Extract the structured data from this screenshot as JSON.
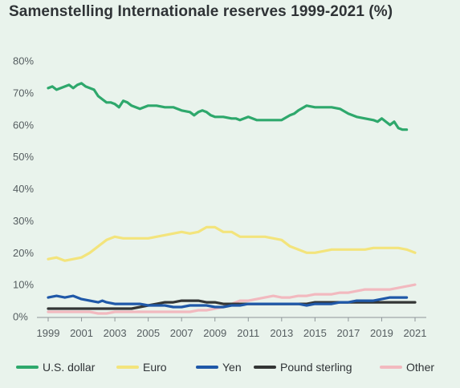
{
  "chart_data": {
    "type": "line",
    "title": "Samenstelling Internationale reserves 1999-2021 (%)",
    "xlabel": "",
    "ylabel": "",
    "xlim": [
      1999,
      2021
    ],
    "ylim": [
      0,
      80
    ],
    "x_ticks": [
      1999,
      2001,
      2003,
      2005,
      2007,
      2009,
      2011,
      2013,
      2015,
      2017,
      2019,
      2021
    ],
    "y_ticks": [
      0,
      10,
      20,
      30,
      40,
      50,
      60,
      70,
      80
    ],
    "y_tick_labels": [
      "0%",
      "10%",
      "20%",
      "30%",
      "40%",
      "50%",
      "60%",
      "70%",
      "80%"
    ],
    "grid": false,
    "legend_position": "bottom",
    "series": [
      {
        "name": "U.S. dollar",
        "color": "#2ea86c",
        "points": [
          [
            1999,
            71.5
          ],
          [
            1999.25,
            72
          ],
          [
            1999.5,
            71
          ],
          [
            1999.75,
            71.5
          ],
          [
            2000,
            72
          ],
          [
            2000.25,
            72.5
          ],
          [
            2000.5,
            71.5
          ],
          [
            2000.75,
            72.5
          ],
          [
            2001,
            73
          ],
          [
            2001.25,
            72
          ],
          [
            2001.5,
            71.5
          ],
          [
            2001.75,
            71
          ],
          [
            2002,
            69
          ],
          [
            2002.25,
            68
          ],
          [
            2002.5,
            67
          ],
          [
            2002.75,
            67
          ],
          [
            2003,
            66.5
          ],
          [
            2003.25,
            65.5
          ],
          [
            2003.5,
            67.5
          ],
          [
            2003.75,
            67
          ],
          [
            2004,
            66
          ],
          [
            2004.5,
            65
          ],
          [
            2005,
            66
          ],
          [
            2005.5,
            66
          ],
          [
            2006,
            65.5
          ],
          [
            2006.5,
            65.5
          ],
          [
            2007,
            64.5
          ],
          [
            2007.5,
            64
          ],
          [
            2007.75,
            63
          ],
          [
            2008,
            64
          ],
          [
            2008.25,
            64.5
          ],
          [
            2008.5,
            64
          ],
          [
            2008.75,
            63
          ],
          [
            2009,
            62.5
          ],
          [
            2009.5,
            62.5
          ],
          [
            2010,
            62
          ],
          [
            2010.25,
            62
          ],
          [
            2010.5,
            61.5
          ],
          [
            2010.75,
            62
          ],
          [
            2011,
            62.5
          ],
          [
            2011.5,
            61.5
          ],
          [
            2012,
            61.5
          ],
          [
            2012.5,
            61.5
          ],
          [
            2013,
            61.5
          ],
          [
            2013.5,
            63
          ],
          [
            2013.75,
            63.5
          ],
          [
            2014,
            64.5
          ],
          [
            2014.5,
            66
          ],
          [
            2015,
            65.5
          ],
          [
            2015.5,
            65.5
          ],
          [
            2016,
            65.5
          ],
          [
            2016.5,
            65
          ],
          [
            2017,
            63.5
          ],
          [
            2017.5,
            62.5
          ],
          [
            2018,
            62
          ],
          [
            2018.5,
            61.5
          ],
          [
            2018.75,
            61
          ],
          [
            2019,
            62
          ],
          [
            2019.25,
            61
          ],
          [
            2019.5,
            60
          ],
          [
            2019.75,
            61
          ],
          [
            2020,
            59
          ],
          [
            2020.25,
            58.5
          ],
          [
            2020.5,
            58.5
          ]
        ]
      },
      {
        "name": "Euro",
        "color": "#f3e47c",
        "points": [
          [
            1999,
            18
          ],
          [
            1999.5,
            18.5
          ],
          [
            2000,
            17.5
          ],
          [
            2000.5,
            18
          ],
          [
            2001,
            18.5
          ],
          [
            2001.5,
            20
          ],
          [
            2002,
            22
          ],
          [
            2002.5,
            24
          ],
          [
            2003,
            25
          ],
          [
            2003.5,
            24.5
          ],
          [
            2004,
            24.5
          ],
          [
            2004.5,
            24.5
          ],
          [
            2005,
            24.5
          ],
          [
            2005.5,
            25
          ],
          [
            2006,
            25.5
          ],
          [
            2006.5,
            26
          ],
          [
            2007,
            26.5
          ],
          [
            2007.5,
            26
          ],
          [
            2008,
            26.5
          ],
          [
            2008.5,
            28
          ],
          [
            2009,
            28
          ],
          [
            2009.5,
            26.5
          ],
          [
            2010,
            26.5
          ],
          [
            2010.5,
            25
          ],
          [
            2011,
            25
          ],
          [
            2011.5,
            25
          ],
          [
            2012,
            25
          ],
          [
            2012.5,
            24.5
          ],
          [
            2013,
            24
          ],
          [
            2013.5,
            22
          ],
          [
            2014,
            21
          ],
          [
            2014.5,
            20
          ],
          [
            2015,
            20
          ],
          [
            2015.5,
            20.5
          ],
          [
            2016,
            21
          ],
          [
            2016.5,
            21
          ],
          [
            2017,
            21
          ],
          [
            2017.5,
            21
          ],
          [
            2018,
            21
          ],
          [
            2018.5,
            21.5
          ],
          [
            2019,
            21.5
          ],
          [
            2019.5,
            21.5
          ],
          [
            2020,
            21.5
          ],
          [
            2020.5,
            21
          ],
          [
            2021,
            20
          ]
        ]
      },
      {
        "name": "Yen",
        "color": "#1f58a8",
        "points": [
          [
            1999,
            6
          ],
          [
            1999.5,
            6.5
          ],
          [
            2000,
            6
          ],
          [
            2000.5,
            6.5
          ],
          [
            2001,
            5.5
          ],
          [
            2001.5,
            5
          ],
          [
            2002,
            4.5
          ],
          [
            2002.25,
            5
          ],
          [
            2002.5,
            4.5
          ],
          [
            2003,
            4
          ],
          [
            2003.5,
            4
          ],
          [
            2004,
            4
          ],
          [
            2004.5,
            4
          ],
          [
            2005,
            3.5
          ],
          [
            2005.5,
            3.5
          ],
          [
            2006,
            3.5
          ],
          [
            2006.5,
            3
          ],
          [
            2007,
            3
          ],
          [
            2007.5,
            3.5
          ],
          [
            2008,
            3.5
          ],
          [
            2008.5,
            3.5
          ],
          [
            2009,
            3
          ],
          [
            2009.5,
            3
          ],
          [
            2010,
            3.5
          ],
          [
            2010.5,
            3.5
          ],
          [
            2011,
            4
          ],
          [
            2011.5,
            4
          ],
          [
            2012,
            4
          ],
          [
            2012.5,
            4
          ],
          [
            2013,
            4
          ],
          [
            2013.5,
            4
          ],
          [
            2014,
            4
          ],
          [
            2014.5,
            3.5
          ],
          [
            2015,
            4
          ],
          [
            2015.5,
            4
          ],
          [
            2016,
            4
          ],
          [
            2016.5,
            4.5
          ],
          [
            2017,
            4.5
          ],
          [
            2017.5,
            5
          ],
          [
            2018,
            5
          ],
          [
            2018.5,
            5
          ],
          [
            2019,
            5.5
          ],
          [
            2019.5,
            6
          ],
          [
            2020,
            6
          ],
          [
            2020.5,
            6
          ]
        ]
      },
      {
        "name": "Pound sterling",
        "color": "#333535",
        "points": [
          [
            1999,
            2.5
          ],
          [
            1999.5,
            2.5
          ],
          [
            2000,
            2.5
          ],
          [
            2000.5,
            2.5
          ],
          [
            2001,
            2.5
          ],
          [
            2001.5,
            2.5
          ],
          [
            2002,
            2.5
          ],
          [
            2002.5,
            2.5
          ],
          [
            2003,
            2.5
          ],
          [
            2003.5,
            2.5
          ],
          [
            2004,
            2.5
          ],
          [
            2004.5,
            3
          ],
          [
            2005,
            3.5
          ],
          [
            2005.5,
            4
          ],
          [
            2006,
            4.5
          ],
          [
            2006.5,
            4.5
          ],
          [
            2007,
            5
          ],
          [
            2007.5,
            5
          ],
          [
            2008,
            5
          ],
          [
            2008.5,
            4.5
          ],
          [
            2009,
            4.5
          ],
          [
            2009.5,
            4
          ],
          [
            2010,
            4
          ],
          [
            2010.5,
            4
          ],
          [
            2011,
            4
          ],
          [
            2011.5,
            4
          ],
          [
            2012,
            4
          ],
          [
            2012.5,
            4
          ],
          [
            2013,
            4
          ],
          [
            2013.5,
            4
          ],
          [
            2014,
            4
          ],
          [
            2014.5,
            4
          ],
          [
            2015,
            4.5
          ],
          [
            2015.5,
            4.5
          ],
          [
            2016,
            4.5
          ],
          [
            2016.5,
            4.5
          ],
          [
            2017,
            4.5
          ],
          [
            2017.5,
            4.5
          ],
          [
            2018,
            4.5
          ],
          [
            2018.5,
            4.5
          ],
          [
            2019,
            4.5
          ],
          [
            2019.5,
            4.5
          ],
          [
            2020,
            4.5
          ],
          [
            2020.5,
            4.5
          ],
          [
            2021,
            4.5
          ]
        ]
      },
      {
        "name": "Other",
        "color": "#f2b9bf",
        "points": [
          [
            1999,
            1.5
          ],
          [
            1999.5,
            1.5
          ],
          [
            2000,
            1.5
          ],
          [
            2000.5,
            1.5
          ],
          [
            2001,
            1.5
          ],
          [
            2001.5,
            1.5
          ],
          [
            2002,
            1
          ],
          [
            2002.5,
            1
          ],
          [
            2003,
            1.5
          ],
          [
            2003.5,
            1.5
          ],
          [
            2004,
            1.5
          ],
          [
            2004.5,
            1.5
          ],
          [
            2005,
            1.5
          ],
          [
            2005.5,
            1.5
          ],
          [
            2006,
            1.5
          ],
          [
            2006.5,
            1.5
          ],
          [
            2007,
            1.5
          ],
          [
            2007.5,
            1.5
          ],
          [
            2008,
            2
          ],
          [
            2008.5,
            2
          ],
          [
            2009,
            2.5
          ],
          [
            2009.5,
            3
          ],
          [
            2010,
            4
          ],
          [
            2010.5,
            5
          ],
          [
            2011,
            5
          ],
          [
            2011.5,
            5.5
          ],
          [
            2012,
            6
          ],
          [
            2012.5,
            6.5
          ],
          [
            2013,
            6
          ],
          [
            2013.5,
            6
          ],
          [
            2014,
            6.5
          ],
          [
            2014.5,
            6.5
          ],
          [
            2015,
            7
          ],
          [
            2015.5,
            7
          ],
          [
            2016,
            7
          ],
          [
            2016.5,
            7.5
          ],
          [
            2017,
            7.5
          ],
          [
            2017.5,
            8
          ],
          [
            2018,
            8.5
          ],
          [
            2018.5,
            8.5
          ],
          [
            2019,
            8.5
          ],
          [
            2019.5,
            8.5
          ],
          [
            2020,
            9
          ],
          [
            2020.5,
            9.5
          ],
          [
            2021,
            10
          ]
        ]
      }
    ]
  }
}
